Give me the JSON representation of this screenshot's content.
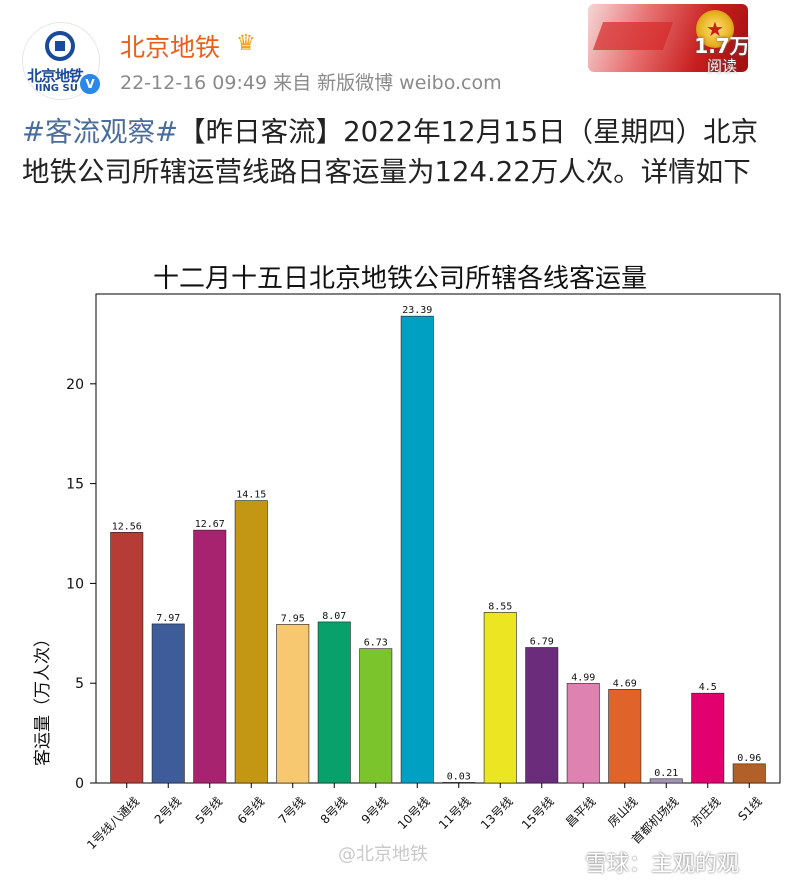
{
  "header": {
    "username": "北京地铁",
    "meta": "22-12-16 09:49  来自 新版微博 weibo.com",
    "read_count": "1.7万",
    "read_label": "阅读",
    "avatar_text": "北京地铁",
    "avatar_sub": "JING SU"
  },
  "post": {
    "tag": "#客流观察#",
    "body": "【昨日客流】2022年12月15日（星期四）北京地铁公司所辖运营线路日客运量为124.22万人次。详情如下"
  },
  "chart_data": {
    "type": "bar",
    "title": "十二月十五日北京地铁公司所辖各线客运量",
    "xlabel": "",
    "ylabel": "客运量（万人次）",
    "ylim": [
      0,
      24.5
    ],
    "yticks": [
      0,
      5,
      10,
      15,
      20
    ],
    "grid": false,
    "categories": [
      "1号线八通线",
      "2号线",
      "5号线",
      "6号线",
      "7号线",
      "8号线",
      "9号线",
      "10号线",
      "11号线",
      "13号线",
      "15号线",
      "昌平线",
      "房山线",
      "首都机场线",
      "亦庄线",
      "S1线"
    ],
    "values": [
      12.56,
      7.97,
      12.67,
      14.15,
      7.95,
      8.07,
      6.73,
      23.39,
      0.03,
      8.55,
      6.79,
      4.99,
      4.69,
      0.21,
      4.5,
      0.96
    ],
    "value_labels": [
      "12.56",
      "7.97",
      "12.67",
      "14.15",
      "7.95",
      "8.07",
      "6.73",
      "23.39",
      "0.03",
      "8.55",
      "6.79",
      "4.99",
      "4.69",
      "0.21",
      "4.5",
      "0.96"
    ],
    "colors": [
      "#b73b36",
      "#3d5c99",
      "#a8236f",
      "#c39614",
      "#f7c86f",
      "#08a06b",
      "#7bc42b",
      "#00a0c3",
      "#d36a4a",
      "#ece522",
      "#6a2c7b",
      "#de82b1",
      "#e0632a",
      "#a094b8",
      "#e2006e",
      "#b06028"
    ]
  },
  "watermark": "@北京地铁",
  "watermark2": "雪球：主观的观"
}
